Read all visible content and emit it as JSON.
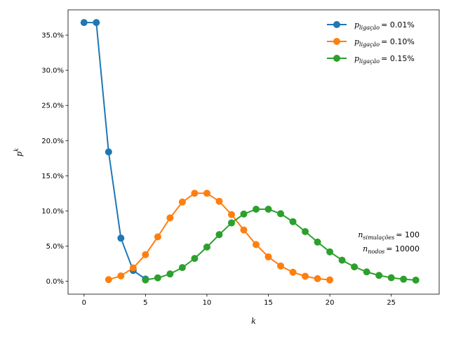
{
  "chart_data": {
    "type": "line",
    "xlabel": "k",
    "ylabel_base": "p",
    "ylabel_sup": "k",
    "xlim": [
      -1.3,
      28.9
    ],
    "ylim": [
      -0.0184,
      0.386
    ],
    "xticks": [
      0,
      5,
      10,
      15,
      20,
      25
    ],
    "yticks": [
      0.0,
      0.05,
      0.1,
      0.15,
      0.2,
      0.25,
      0.3,
      0.35
    ],
    "ytick_labels": [
      "0.0%",
      "5.0%",
      "10.0%",
      "15.0%",
      "20.0%",
      "25.0%",
      "30.0%",
      "35.0%"
    ],
    "grid": false,
    "legend_position": "top-right",
    "series": [
      {
        "name_base": "p",
        "name_sub": "ligação",
        "name_value": "= 0.01%",
        "color": "#1f77b4",
        "x": [
          0,
          1,
          2,
          3,
          4,
          5
        ],
        "y": [
          0.3679,
          0.3679,
          0.1839,
          0.0613,
          0.0153,
          0.0031
        ]
      },
      {
        "name_base": "p",
        "name_sub": "ligação",
        "name_value": "= 0.10%",
        "color": "#ff7f0e",
        "x": [
          2,
          3,
          4,
          5,
          6,
          7,
          8,
          9,
          10,
          11,
          12,
          13,
          14,
          15,
          16,
          17,
          18,
          19,
          20
        ],
        "y": [
          0.0023,
          0.0076,
          0.0189,
          0.0378,
          0.0631,
          0.0901,
          0.1126,
          0.1251,
          0.1251,
          0.1137,
          0.0948,
          0.0729,
          0.0521,
          0.0347,
          0.0217,
          0.0128,
          0.0071,
          0.0037,
          0.0019
        ]
      },
      {
        "name_base": "p",
        "name_sub": "ligação",
        "name_value": "= 0.15%",
        "color": "#2ca02c",
        "x": [
          5,
          6,
          7,
          8,
          9,
          10,
          11,
          12,
          13,
          14,
          15,
          16,
          17,
          18,
          19,
          20,
          21,
          22,
          23,
          24,
          25,
          26,
          27
        ],
        "y": [
          0.0019,
          0.0048,
          0.0104,
          0.0194,
          0.0324,
          0.0486,
          0.0663,
          0.0829,
          0.0956,
          0.1024,
          0.1024,
          0.096,
          0.0847,
          0.0706,
          0.0557,
          0.0418,
          0.0299,
          0.0204,
          0.0133,
          0.0083,
          0.005,
          0.0029,
          0.0016
        ]
      }
    ],
    "annotations": [
      {
        "base": "n",
        "sub": "simulações",
        "value": "= 100"
      },
      {
        "base": "n",
        "sub": "nodos",
        "value": "= 10000"
      }
    ]
  }
}
